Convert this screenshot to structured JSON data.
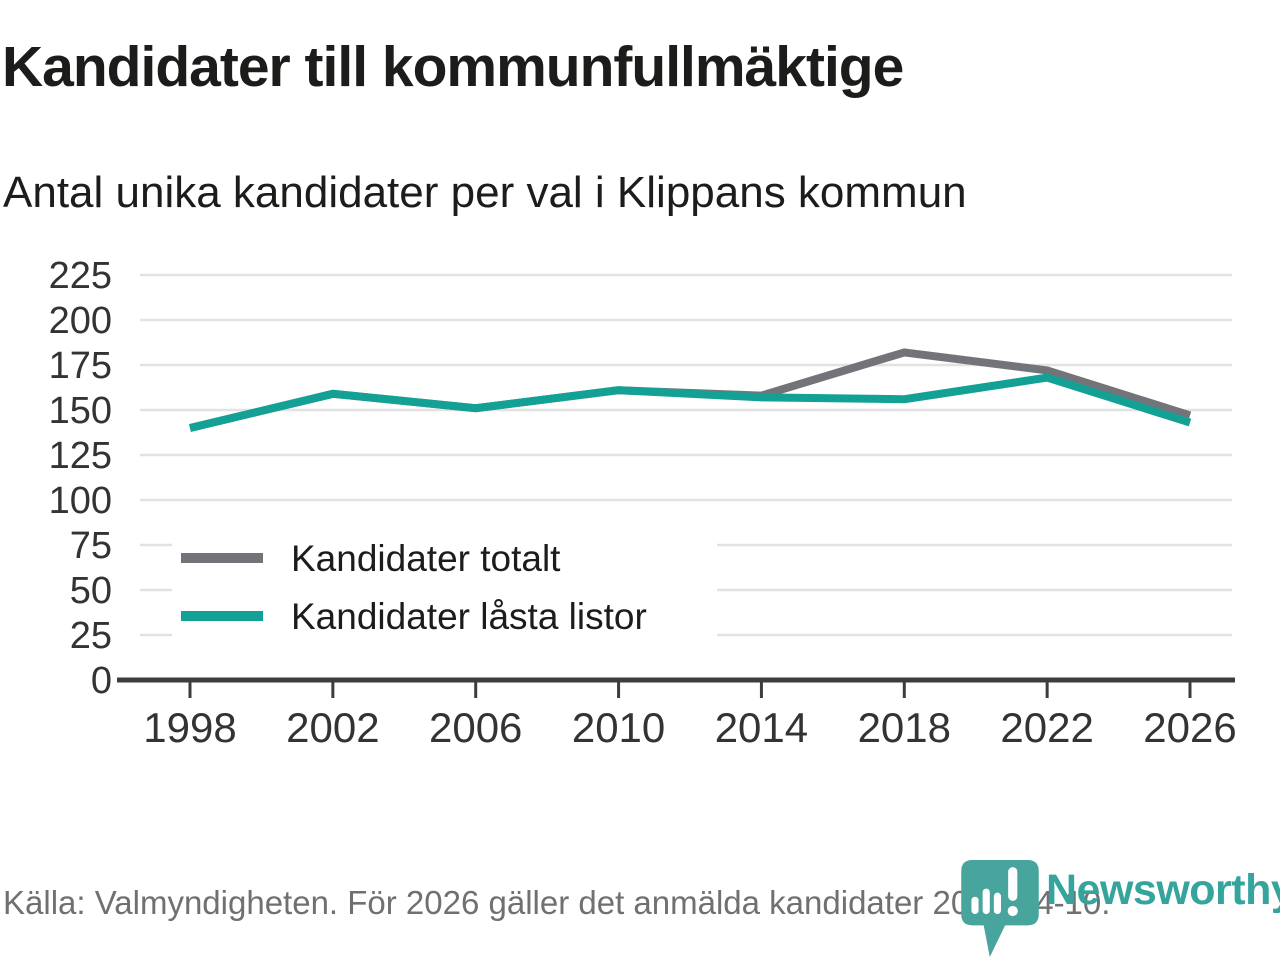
{
  "chart_data": {
    "type": "line",
    "title": "Kandidater till kommunfullmäktige",
    "subtitle": "Antal unika kandidater per val i Klippans kommun",
    "x": [
      "1998",
      "2002",
      "2006",
      "2010",
      "2014",
      "2018",
      "2022",
      "2026"
    ],
    "series": [
      {
        "name": "Kandidater totalt",
        "color": "#73737a",
        "values": [
          140,
          159,
          151,
          161,
          158,
          182,
          172,
          147
        ]
      },
      {
        "name": "Kandidater låsta listor",
        "color": "#14a195",
        "values": [
          140,
          159,
          151,
          161,
          157,
          156,
          168,
          143
        ]
      }
    ],
    "ylim": [
      0,
      225
    ],
    "yticks": [
      0,
      25,
      50,
      75,
      100,
      125,
      150,
      175,
      200,
      225
    ],
    "grid": "horizontal",
    "legend_position": "inside-lower-left",
    "colors": {
      "grid": "#e2e2e2",
      "axis": "#3d3d3c",
      "tick_label": "#333333"
    }
  },
  "source": "Källa: Valmyndigheten. För 2026 gäller det anmälda kandidater 2026-04-10.",
  "logo": {
    "text": "Newsworthy",
    "icon": "newsworthy-pin-barchart-icon",
    "color": "#35a49c"
  }
}
